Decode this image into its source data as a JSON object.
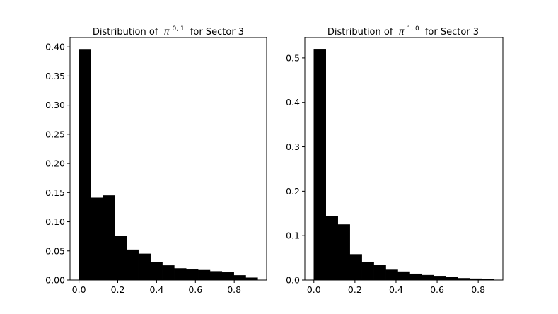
{
  "chart_data": [
    {
      "type": "bar",
      "title": "Distribution of",
      "title_symbol": "π",
      "title_superscript": "0, 1",
      "title_suffix": "for Sector 3",
      "xlabel": "",
      "ylabel": "",
      "bin_width": 0.0614,
      "x_bin_starts": [
        0.0,
        0.0614,
        0.1228,
        0.1842,
        0.2456,
        0.307,
        0.3684,
        0.4298,
        0.4912,
        0.5526,
        0.614,
        0.6754,
        0.7368,
        0.7982,
        0.8596
      ],
      "values": [
        0.396,
        0.141,
        0.145,
        0.076,
        0.052,
        0.045,
        0.031,
        0.025,
        0.02,
        0.018,
        0.017,
        0.015,
        0.013,
        0.008,
        0.004
      ],
      "xlim": [
        -0.046,
        0.967
      ],
      "ylim": [
        0.0,
        0.416
      ],
      "x_ticks": [
        "0.0",
        "0.2",
        "0.4",
        "0.6",
        "0.8"
      ],
      "x_tick_values": [
        0.0,
        0.2,
        0.4,
        0.6,
        0.8
      ],
      "y_ticks": [
        "0.00",
        "0.05",
        "0.10",
        "0.15",
        "0.20",
        "0.25",
        "0.30",
        "0.35",
        "0.40"
      ],
      "y_tick_values": [
        0.0,
        0.05,
        0.1,
        0.15,
        0.2,
        0.25,
        0.3,
        0.35,
        0.4
      ],
      "grid": false,
      "bar_color": "#000000"
    },
    {
      "type": "bar",
      "title": "Distribution of",
      "title_symbol": "π",
      "title_superscript": "1, 0",
      "title_suffix": "for Sector 3",
      "xlabel": "",
      "ylabel": "",
      "bin_width": 0.0584,
      "x_bin_starts": [
        0.0,
        0.0584,
        0.1168,
        0.1752,
        0.2336,
        0.292,
        0.3504,
        0.4088,
        0.4672,
        0.5256,
        0.584,
        0.6424,
        0.7008,
        0.7592,
        0.8176
      ],
      "values": [
        0.52,
        0.144,
        0.125,
        0.058,
        0.041,
        0.033,
        0.023,
        0.019,
        0.014,
        0.011,
        0.009,
        0.007,
        0.004,
        0.003,
        0.002
      ],
      "xlim": [
        -0.044,
        0.92
      ],
      "ylim": [
        0.0,
        0.546
      ],
      "x_ticks": [
        "0.0",
        "0.2",
        "0.4",
        "0.6",
        "0.8"
      ],
      "x_tick_values": [
        0.0,
        0.2,
        0.4,
        0.6,
        0.8
      ],
      "y_ticks": [
        "0.0",
        "0.1",
        "0.2",
        "0.3",
        "0.4",
        "0.5"
      ],
      "y_tick_values": [
        0.0,
        0.1,
        0.2,
        0.3,
        0.4,
        0.5
      ],
      "grid": false,
      "bar_color": "#000000"
    }
  ]
}
